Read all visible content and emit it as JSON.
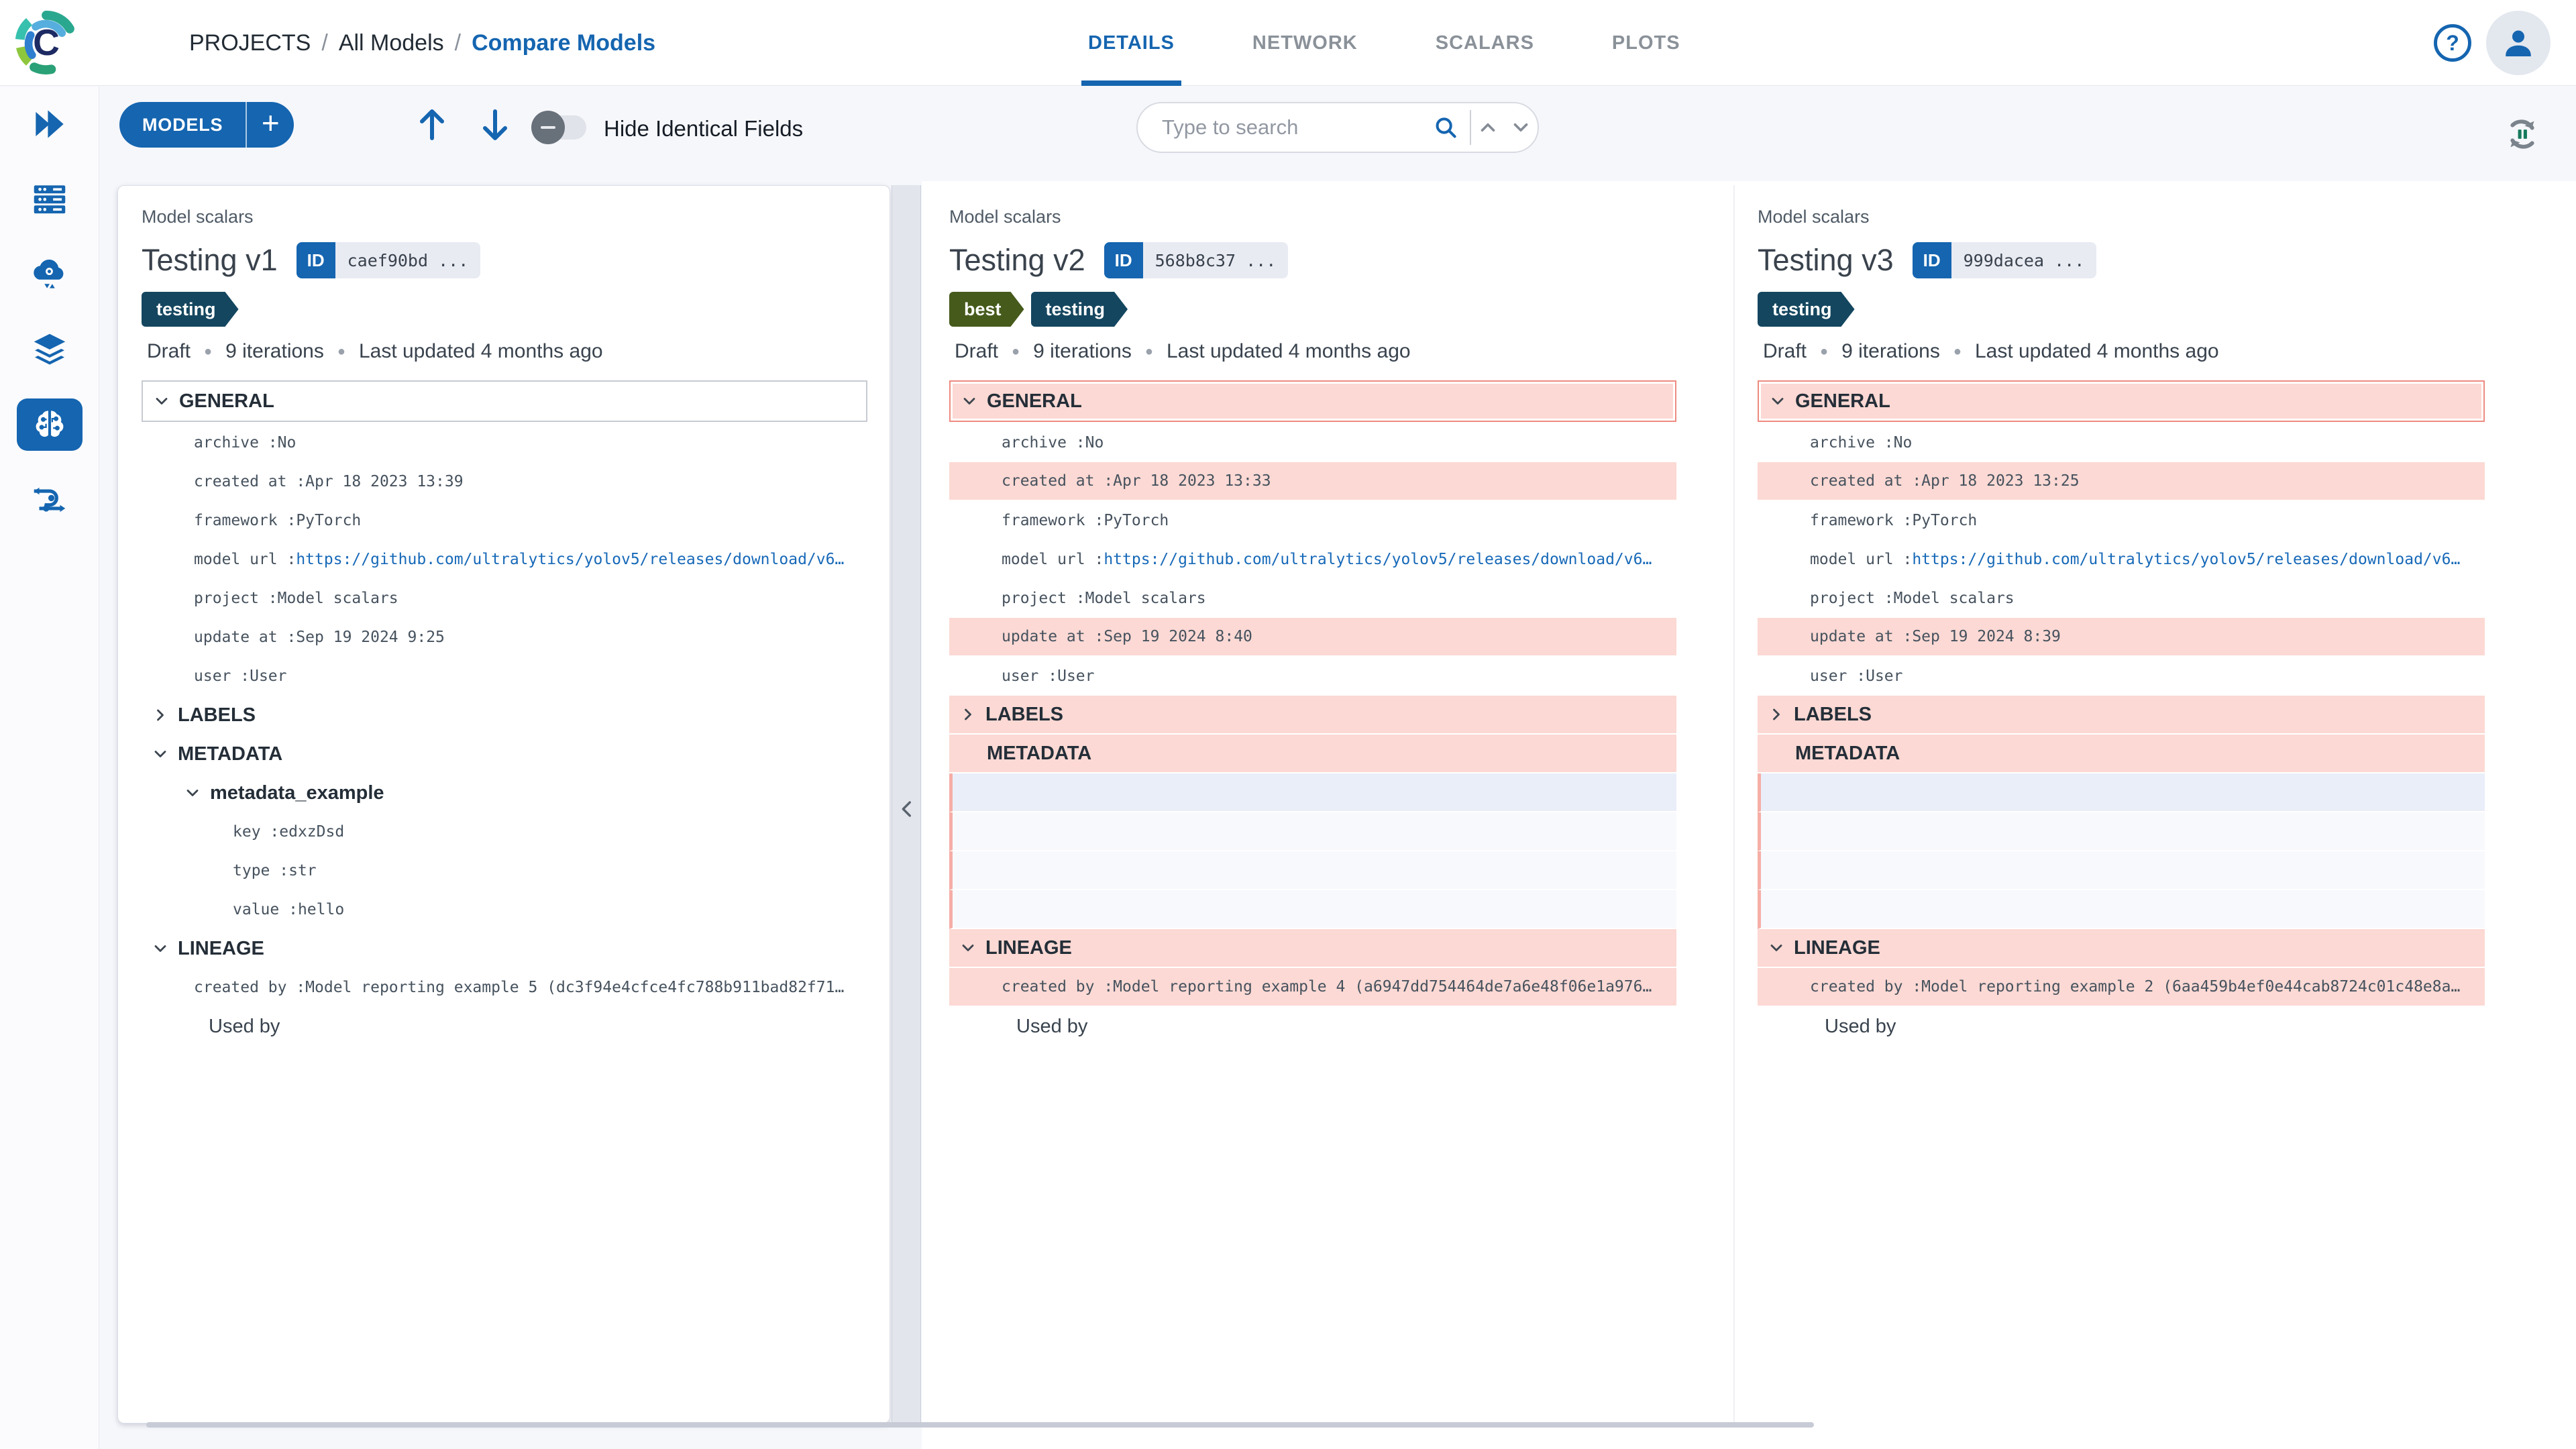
{
  "header": {
    "breadcrumb": [
      "PROJECTS",
      "All Models",
      "Compare Models"
    ],
    "separator": "/",
    "tabs": [
      {
        "label": "DETAILS",
        "active": true
      },
      {
        "label": "NETWORK",
        "active": false
      },
      {
        "label": "SCALARS",
        "active": false
      },
      {
        "label": "PLOTS",
        "active": false
      }
    ]
  },
  "toolbar": {
    "models_label": "MODELS",
    "add_label": "+",
    "hide_identical_label": "Hide Identical Fields",
    "search_placeholder": "Type to search"
  },
  "sidebar": {
    "icons": [
      "fast-forward-icon",
      "servers-icon",
      "cloud-gear-icon",
      "layers-icon",
      "brain-icon",
      "pipeline-icon"
    ],
    "active": "brain-icon"
  },
  "colors": {
    "accent_blue": "#1565b0",
    "link_blue": "#1769b8",
    "diff_pink": "#fcd9d4",
    "diff_border": "#ee8b81",
    "tag_navy": "#14465f",
    "tag_olive": "#465a1b"
  },
  "columns": [
    {
      "project_label": "Model scalars",
      "title": "Testing v1",
      "id_badge": {
        "label": "ID",
        "value": "caef90bd ..."
      },
      "tags": [
        {
          "label": "testing",
          "color": "#14465f"
        }
      ],
      "status": [
        "Draft",
        "9 iterations",
        "Last updated 4 months ago"
      ],
      "rows": [
        {
          "t": "sec",
          "label": "GENERAL",
          "chev": "down",
          "boxed": true
        },
        {
          "t": "field",
          "key": "archive",
          "value": "No"
        },
        {
          "t": "field",
          "key": "created at",
          "value": "Apr 18 2023 13:39"
        },
        {
          "t": "field",
          "key": "framework",
          "value": "PyTorch"
        },
        {
          "t": "field",
          "key": "model url",
          "value": "https://github.com/ultralytics/yolov5/releases/download/v6…",
          "link": true
        },
        {
          "t": "field",
          "key": "project",
          "value": "Model scalars"
        },
        {
          "t": "field",
          "key": "update at",
          "value": "Sep 19 2024 9:25"
        },
        {
          "t": "field",
          "key": "user",
          "value": "User"
        },
        {
          "t": "sec",
          "label": "LABELS",
          "chev": "right"
        },
        {
          "t": "sec",
          "label": "METADATA",
          "chev": "down"
        },
        {
          "t": "sub",
          "label": "metadata_example",
          "chev": "down"
        },
        {
          "t": "field",
          "key": "key",
          "value": "edxzDsd",
          "indent": true
        },
        {
          "t": "field",
          "key": "type",
          "value": "str",
          "indent": true
        },
        {
          "t": "field",
          "key": "value",
          "value": "hello",
          "indent": true
        },
        {
          "t": "sec",
          "label": "LINEAGE",
          "chev": "down"
        },
        {
          "t": "field",
          "key": "created by",
          "value": "Model reporting example 5 (dc3f94e4cfce4fc788b911bad82f71…"
        },
        {
          "t": "text",
          "label": "Used by"
        }
      ]
    },
    {
      "project_label": "Model scalars",
      "title": "Testing v2",
      "id_badge": {
        "label": "ID",
        "value": "568b8c37 ..."
      },
      "tags": [
        {
          "label": "best",
          "color": "#465a1b"
        },
        {
          "label": "testing",
          "color": "#14465f"
        }
      ],
      "status": [
        "Draft",
        "9 iterations",
        "Last updated 4 months ago"
      ],
      "rows": [
        {
          "t": "sec",
          "label": "GENERAL",
          "chev": "down",
          "boxed": true,
          "diff": true
        },
        {
          "t": "field",
          "key": "archive",
          "value": "No"
        },
        {
          "t": "field",
          "key": "created at",
          "value": "Apr 18 2023 13:33",
          "diff": true
        },
        {
          "t": "field",
          "key": "framework",
          "value": "PyTorch"
        },
        {
          "t": "field",
          "key": "model url",
          "value": "https://github.com/ultralytics/yolov5/releases/download/v6…",
          "link": true
        },
        {
          "t": "field",
          "key": "project",
          "value": "Model scalars"
        },
        {
          "t": "field",
          "key": "update at",
          "value": "Sep 19 2024 8:40",
          "diff": true
        },
        {
          "t": "field",
          "key": "user",
          "value": "User"
        },
        {
          "t": "sec",
          "label": "LABELS",
          "chev": "right",
          "diff": true
        },
        {
          "t": "sec",
          "label": "METADATA",
          "chev": "none",
          "diff": true
        },
        {
          "t": "empty",
          "blue": true
        },
        {
          "t": "empty"
        },
        {
          "t": "empty"
        },
        {
          "t": "empty"
        },
        {
          "t": "sec",
          "label": "LINEAGE",
          "chev": "down",
          "diff": true
        },
        {
          "t": "field",
          "key": "created by",
          "value": "Model reporting example 4 (a6947dd754464de7a6e48f06e1a976…",
          "diff": true
        },
        {
          "t": "text",
          "label": "Used by"
        }
      ]
    },
    {
      "project_label": "Model scalars",
      "title": "Testing v3",
      "id_badge": {
        "label": "ID",
        "value": "999dacea ..."
      },
      "tags": [
        {
          "label": "testing",
          "color": "#14465f"
        }
      ],
      "status": [
        "Draft",
        "9 iterations",
        "Last updated 4 months ago"
      ],
      "rows": [
        {
          "t": "sec",
          "label": "GENERAL",
          "chev": "down",
          "boxed": true,
          "diff": true
        },
        {
          "t": "field",
          "key": "archive",
          "value": "No"
        },
        {
          "t": "field",
          "key": "created at",
          "value": "Apr 18 2023 13:25",
          "diff": true
        },
        {
          "t": "field",
          "key": "framework",
          "value": "PyTorch"
        },
        {
          "t": "field",
          "key": "model url",
          "value": "https://github.com/ultralytics/yolov5/releases/download/v6…",
          "link": true
        },
        {
          "t": "field",
          "key": "project",
          "value": "Model scalars"
        },
        {
          "t": "field",
          "key": "update at",
          "value": "Sep 19 2024 8:39",
          "diff": true
        },
        {
          "t": "field",
          "key": "user",
          "value": "User"
        },
        {
          "t": "sec",
          "label": "LABELS",
          "chev": "right",
          "diff": true
        },
        {
          "t": "sec",
          "label": "METADATA",
          "chev": "none",
          "diff": true
        },
        {
          "t": "empty",
          "blue": true
        },
        {
          "t": "empty"
        },
        {
          "t": "empty"
        },
        {
          "t": "empty"
        },
        {
          "t": "sec",
          "label": "LINEAGE",
          "chev": "down",
          "diff": true
        },
        {
          "t": "field",
          "key": "created by",
          "value": "Model reporting example 2 (6aa459b4ef0e44cab8724c01c48e8a…",
          "diff": true
        },
        {
          "t": "text",
          "label": "Used by"
        }
      ]
    }
  ]
}
